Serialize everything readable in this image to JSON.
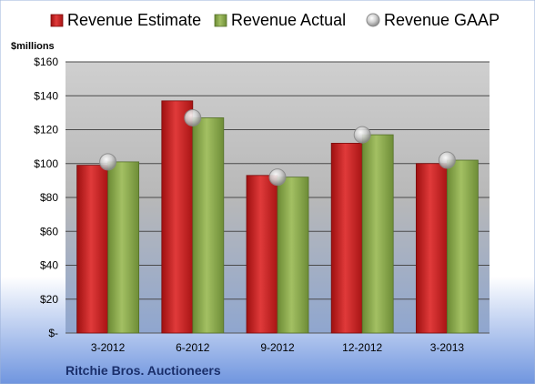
{
  "chart_data": {
    "type": "bar",
    "title": "",
    "company": "Ritchie Bros. Auctioneers",
    "unit_label": "$millions",
    "categories": [
      "3-2012",
      "6-2012",
      "9-2012",
      "12-2012",
      "3-2013"
    ],
    "series": [
      {
        "name": "Revenue Estimate",
        "kind": "bar",
        "color": "#cc1f1f",
        "values": [
          99,
          137,
          93,
          112,
          100
        ]
      },
      {
        "name": "Revenue Actual",
        "kind": "bar",
        "color": "#8aaa4c",
        "values": [
          101,
          127,
          92,
          117,
          102
        ]
      },
      {
        "name": "Revenue GAAP",
        "kind": "marker",
        "color": "#b8b8b8",
        "values": [
          101,
          127,
          92,
          117,
          102
        ]
      }
    ],
    "y_ticks": [
      0,
      20,
      40,
      60,
      80,
      100,
      120,
      140,
      160
    ],
    "y_tick_labels": [
      "$-",
      "$20",
      "$40",
      "$60",
      "$80",
      "$100",
      "$120",
      "$140",
      "$160"
    ],
    "ylim": [
      0,
      160
    ],
    "grid": true,
    "legend_position": "top"
  }
}
